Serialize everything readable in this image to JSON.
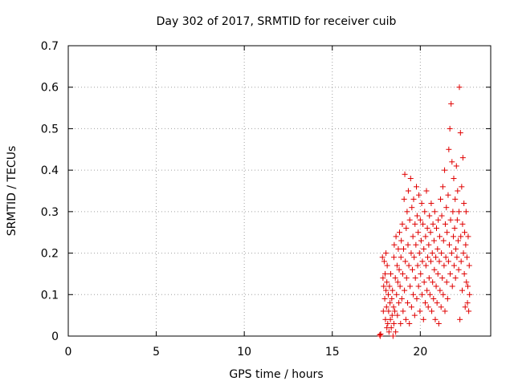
{
  "chart_data": {
    "type": "scatter",
    "title": "Day 302 of 2017, SRMTID for receiver cuib",
    "xlabel": "GPS time / hours",
    "ylabel": "SRMTID / TECUs",
    "xlim": [
      0,
      24
    ],
    "ylim": [
      0,
      0.7
    ],
    "xticks": [
      0,
      5,
      10,
      15,
      20
    ],
    "yticks": [
      0,
      0.1,
      0.2,
      0.3,
      0.4,
      0.5,
      0.6,
      0.7
    ],
    "xtick_labels": [
      "0",
      "5",
      "10",
      "15",
      "20"
    ],
    "ytick_labels": [
      "0",
      "0.1",
      "0.2",
      "0.3",
      "0.4",
      "0.5",
      "0.6",
      "0.7"
    ],
    "grid": true,
    "marker": "+",
    "color": "#e00000",
    "series": [
      {
        "name": "SRMTID",
        "points": [
          [
            17.7,
            0.003
          ],
          [
            17.72,
            0.0
          ],
          [
            17.75,
            0.005
          ],
          [
            17.85,
            0.19
          ],
          [
            17.88,
            0.14
          ],
          [
            17.9,
            0.06
          ],
          [
            17.92,
            0.12
          ],
          [
            17.95,
            0.18
          ],
          [
            17.98,
            0.09
          ],
          [
            18.0,
            0.15
          ],
          [
            18.02,
            0.04
          ],
          [
            18.05,
            0.2
          ],
          [
            18.05,
            0.11
          ],
          [
            18.08,
            0.07
          ],
          [
            18.1,
            0.02
          ],
          [
            18.1,
            0.13
          ],
          [
            18.12,
            0.17
          ],
          [
            18.15,
            0.03
          ],
          [
            18.18,
            0.1
          ],
          [
            18.2,
            0.06
          ],
          [
            18.22,
            0.01
          ],
          [
            18.25,
            0.12
          ],
          [
            18.28,
            0.08
          ],
          [
            18.3,
            0.04
          ],
          [
            18.32,
            0.15
          ],
          [
            18.35,
            0.02
          ],
          [
            18.38,
            0.09
          ],
          [
            18.4,
            0.05
          ],
          [
            18.42,
            0.11
          ],
          [
            18.45,
            0.0
          ],
          [
            18.48,
            0.07
          ],
          [
            18.5,
            0.03
          ],
          [
            18.5,
            0.19
          ],
          [
            18.52,
            0.22
          ],
          [
            18.55,
            0.06
          ],
          [
            18.58,
            0.14
          ],
          [
            18.6,
            0.01
          ],
          [
            18.62,
            0.24
          ],
          [
            18.65,
            0.1
          ],
          [
            18.68,
            0.17
          ],
          [
            18.7,
            0.05
          ],
          [
            18.72,
            0.13
          ],
          [
            18.75,
            0.21
          ],
          [
            18.78,
            0.08
          ],
          [
            18.8,
            0.16
          ],
          [
            18.82,
            0.25
          ],
          [
            18.85,
            0.12
          ],
          [
            18.88,
            0.03
          ],
          [
            18.9,
            0.19
          ],
          [
            18.92,
            0.23
          ],
          [
            18.95,
            0.09
          ],
          [
            18.98,
            0.27
          ],
          [
            19.0,
            0.15
          ],
          [
            19.02,
            0.06
          ],
          [
            19.05,
            0.21
          ],
          [
            19.08,
            0.33
          ],
          [
            19.1,
            0.11
          ],
          [
            19.12,
            0.39
          ],
          [
            19.15,
            0.18
          ],
          [
            19.18,
            0.04
          ],
          [
            19.2,
            0.26
          ],
          [
            19.22,
            0.14
          ],
          [
            19.25,
            0.3
          ],
          [
            19.28,
            0.08
          ],
          [
            19.3,
            0.22
          ],
          [
            19.32,
            0.35
          ],
          [
            19.35,
            0.17
          ],
          [
            19.38,
            0.03
          ],
          [
            19.4,
            0.28
          ],
          [
            19.42,
            0.12
          ],
          [
            19.45,
            0.38
          ],
          [
            19.48,
            0.2
          ],
          [
            19.5,
            0.07
          ],
          [
            19.52,
            0.31
          ],
          [
            19.55,
            0.16
          ],
          [
            19.58,
            0.24
          ],
          [
            19.6,
            0.1
          ],
          [
            19.62,
            0.33
          ],
          [
            19.65,
            0.19
          ],
          [
            19.68,
            0.05
          ],
          [
            19.7,
            0.27
          ],
          [
            19.72,
            0.14
          ],
          [
            19.75,
            0.22
          ],
          [
            19.78,
            0.36
          ],
          [
            19.8,
            0.09
          ],
          [
            19.82,
            0.29
          ],
          [
            19.85,
            0.17
          ],
          [
            19.88,
            0.25
          ],
          [
            19.9,
            0.12
          ],
          [
            19.92,
            0.34
          ],
          [
            19.95,
            0.2
          ],
          [
            19.98,
            0.06
          ],
          [
            20.0,
            0.28
          ],
          [
            20.02,
            0.15
          ],
          [
            20.05,
            0.23
          ],
          [
            20.08,
            0.32
          ],
          [
            20.1,
            0.1
          ],
          [
            20.12,
            0.18
          ],
          [
            20.15,
            0.27
          ],
          [
            20.18,
            0.04
          ],
          [
            20.2,
            0.21
          ],
          [
            20.22,
            0.13
          ],
          [
            20.25,
            0.3
          ],
          [
            20.28,
            0.08
          ],
          [
            20.3,
            0.24
          ],
          [
            20.32,
            0.17
          ],
          [
            20.35,
            0.35
          ],
          [
            20.38,
            0.11
          ],
          [
            20.4,
            0.26
          ],
          [
            20.42,
            0.19
          ],
          [
            20.45,
            0.07
          ],
          [
            20.48,
            0.22
          ],
          [
            20.5,
            0.14
          ],
          [
            20.52,
            0.29
          ],
          [
            20.55,
            0.1
          ],
          [
            20.58,
            0.25
          ],
          [
            20.6,
            0.18
          ],
          [
            20.62,
            0.32
          ],
          [
            20.65,
            0.06
          ],
          [
            20.68,
            0.2
          ],
          [
            20.7,
            0.13
          ],
          [
            20.72,
            0.27
          ],
          [
            20.75,
            0.09
          ],
          [
            20.78,
            0.23
          ],
          [
            20.8,
            0.16
          ],
          [
            20.82,
            0.3
          ],
          [
            20.85,
            0.04
          ],
          [
            20.88,
            0.19
          ],
          [
            20.9,
            0.12
          ],
          [
            20.92,
            0.26
          ],
          [
            20.95,
            0.08
          ],
          [
            20.98,
            0.21
          ],
          [
            21.0,
            0.15
          ],
          [
            21.02,
            0.28
          ],
          [
            21.05,
            0.03
          ],
          [
            21.08,
            0.18
          ],
          [
            21.1,
            0.24
          ],
          [
            21.12,
            0.11
          ],
          [
            21.15,
            0.33
          ],
          [
            21.18,
            0.07
          ],
          [
            21.2,
            0.2
          ],
          [
            21.22,
            0.29
          ],
          [
            21.25,
            0.14
          ],
          [
            21.28,
            0.36
          ],
          [
            21.3,
            0.1
          ],
          [
            21.32,
            0.23
          ],
          [
            21.35,
            0.17
          ],
          [
            21.38,
            0.4
          ],
          [
            21.4,
            0.06
          ],
          [
            21.42,
            0.27
          ],
          [
            21.45,
            0.19
          ],
          [
            21.48,
            0.31
          ],
          [
            21.5,
            0.13
          ],
          [
            21.52,
            0.25
          ],
          [
            21.55,
            0.09
          ],
          [
            21.58,
            0.34
          ],
          [
            21.6,
            0.18
          ],
          [
            21.62,
            0.45
          ],
          [
            21.65,
            0.22
          ],
          [
            21.68,
            0.5
          ],
          [
            21.7,
            0.15
          ],
          [
            21.72,
            0.28
          ],
          [
            21.75,
            0.56
          ],
          [
            21.78,
            0.2
          ],
          [
            21.8,
            0.42
          ],
          [
            21.82,
            0.12
          ],
          [
            21.85,
            0.3
          ],
          [
            21.88,
            0.24
          ],
          [
            21.9,
            0.38
          ],
          [
            21.92,
            0.17
          ],
          [
            21.95,
            0.26
          ],
          [
            21.98,
            0.33
          ],
          [
            22.0,
            0.14
          ],
          [
            22.02,
            0.21
          ],
          [
            22.05,
            0.41
          ],
          [
            22.08,
            0.19
          ],
          [
            22.1,
            0.28
          ],
          [
            22.12,
            0.35
          ],
          [
            22.15,
            0.23
          ],
          [
            22.18,
            0.16
          ],
          [
            22.2,
            0.3
          ],
          [
            22.22,
            0.6
          ],
          [
            22.25,
            0.04
          ],
          [
            22.28,
            0.49
          ],
          [
            22.3,
            0.24
          ],
          [
            22.32,
            0.18
          ],
          [
            22.35,
            0.36
          ],
          [
            22.38,
            0.11
          ],
          [
            22.4,
            0.27
          ],
          [
            22.42,
            0.43
          ],
          [
            22.45,
            0.2
          ],
          [
            22.48,
            0.32
          ],
          [
            22.5,
            0.15
          ],
          [
            22.52,
            0.25
          ],
          [
            22.55,
            0.07
          ],
          [
            22.58,
            0.22
          ],
          [
            22.6,
            0.3
          ],
          [
            22.62,
            0.13
          ],
          [
            22.65,
            0.19
          ],
          [
            22.68,
            0.08
          ],
          [
            22.7,
            0.12
          ],
          [
            22.72,
            0.24
          ],
          [
            22.75,
            0.06
          ],
          [
            22.78,
            0.17
          ],
          [
            22.8,
            0.1
          ]
        ]
      }
    ]
  }
}
